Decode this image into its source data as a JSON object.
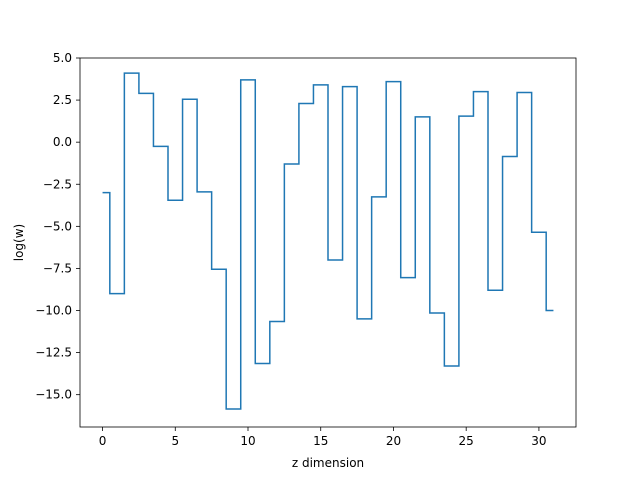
{
  "chart_data": {
    "type": "line",
    "step": "mid",
    "title": "",
    "xlabel": "z dimension",
    "ylabel": "log(w)",
    "xlim": [
      -1.55,
      32.55
    ],
    "ylim": [
      -16.92,
      5.0
    ],
    "grid": false,
    "x_ticks": [
      0,
      5,
      10,
      15,
      20,
      25,
      30
    ],
    "x_tick_labels": [
      "0",
      "5",
      "10",
      "15",
      "20",
      "25",
      "30"
    ],
    "y_ticks": [
      5.0,
      2.5,
      0.0,
      -2.5,
      -5.0,
      -7.5,
      -10.0,
      -12.5,
      -15.0
    ],
    "y_tick_labels": [
      "5.0",
      "2.5",
      "0.0",
      "−2.5",
      "−5.0",
      "−7.5",
      "−10.0",
      "−12.5",
      "−15.0"
    ],
    "series": [
      {
        "color": "#1f77b4",
        "x": [
          0,
          1,
          2,
          3,
          4,
          5,
          6,
          7,
          8,
          9,
          10,
          11,
          12,
          13,
          14,
          15,
          16,
          17,
          18,
          19,
          20,
          21,
          22,
          23,
          24,
          25,
          26,
          27,
          28,
          29,
          30,
          31
        ],
        "values": [
          -3.0,
          -9.0,
          4.1,
          2.9,
          -0.25,
          -3.45,
          2.55,
          -2.95,
          -7.55,
          -15.85,
          3.7,
          -13.15,
          -10.65,
          -1.3,
          2.3,
          3.4,
          -7.0,
          3.3,
          -10.5,
          -3.25,
          3.6,
          -8.05,
          1.5,
          -10.15,
          -13.3,
          1.55,
          3.0,
          -8.8,
          -0.85,
          2.95,
          -5.35,
          -10.0
        ]
      }
    ]
  }
}
